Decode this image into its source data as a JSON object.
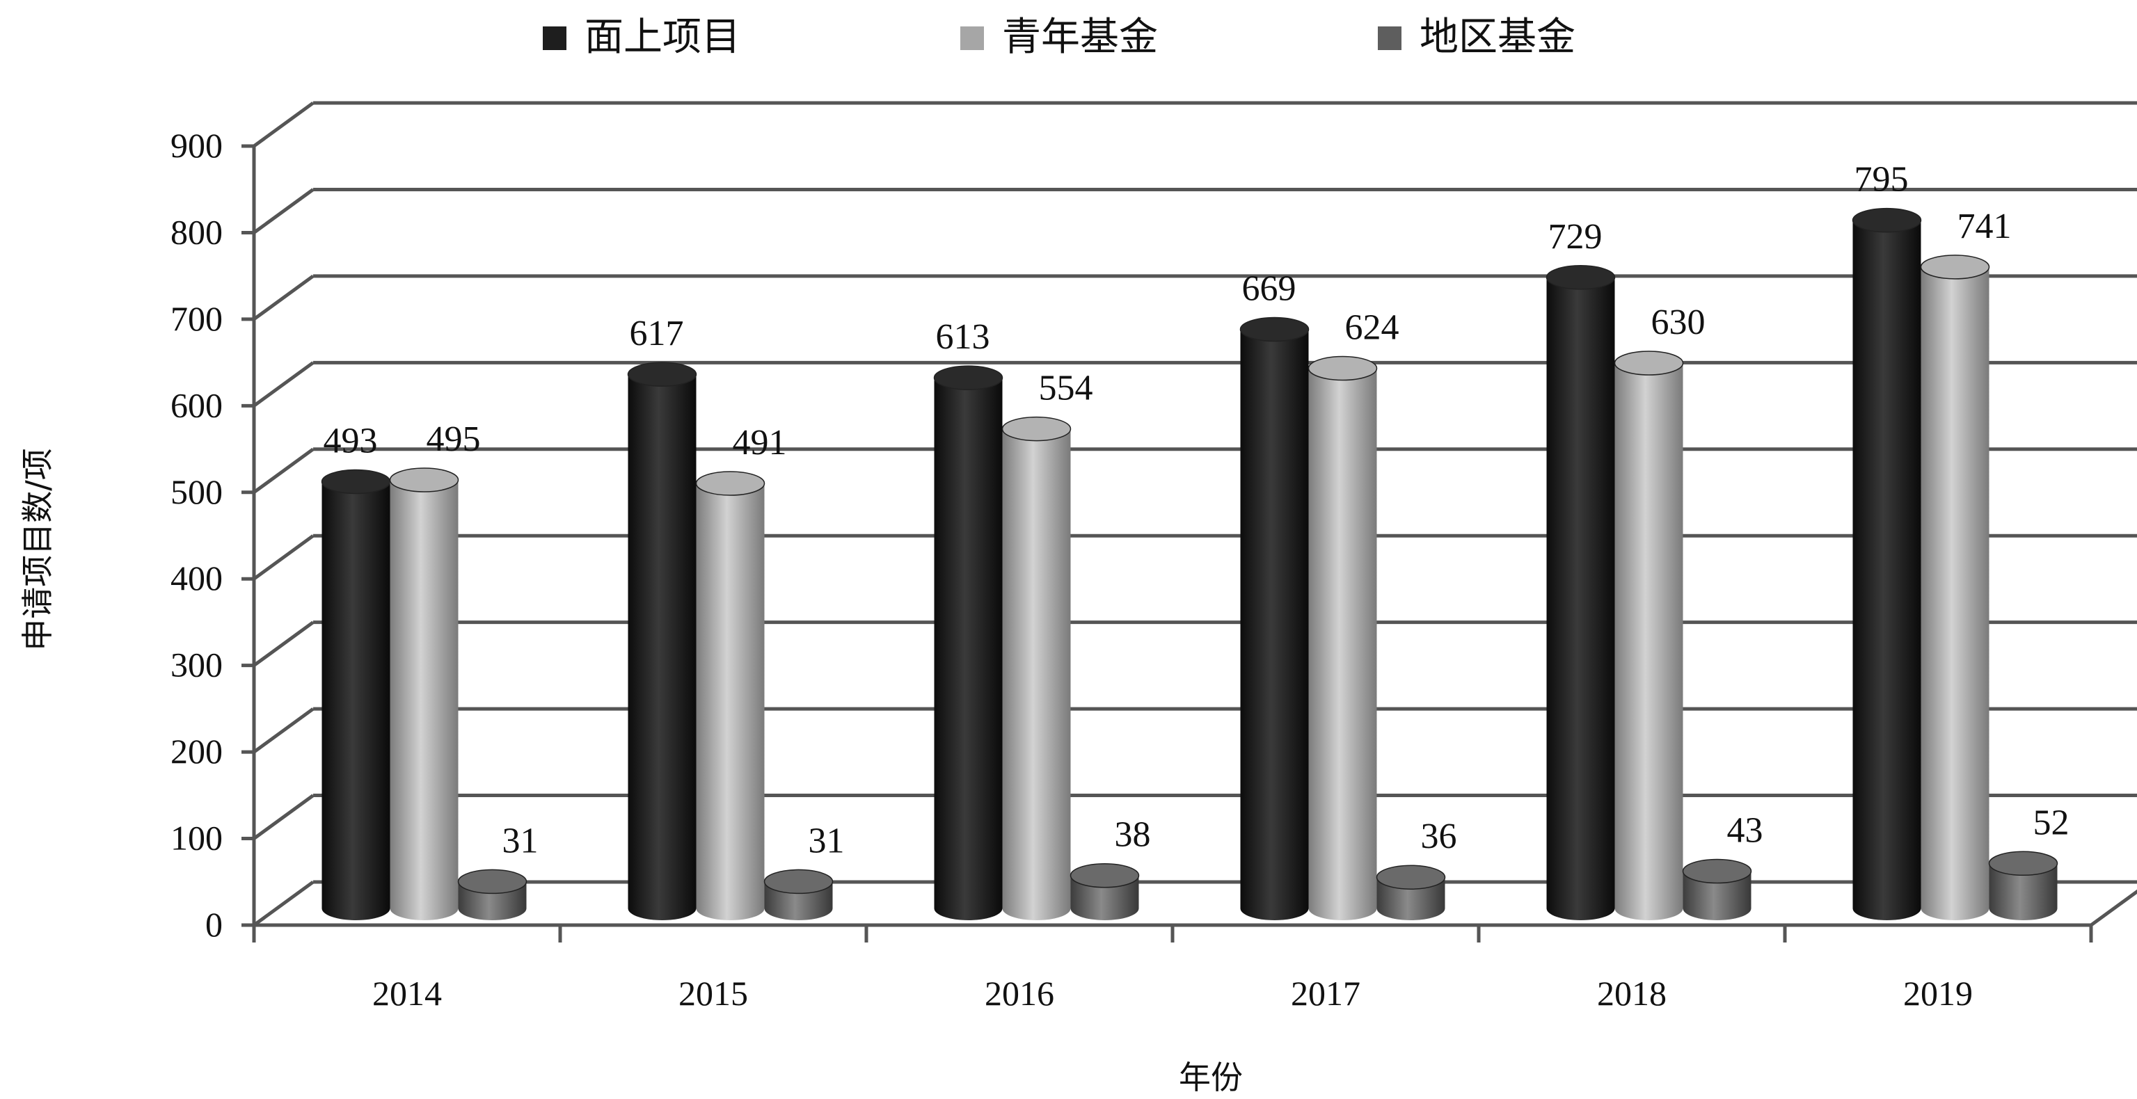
{
  "chart_data": {
    "type": "bar",
    "title": "",
    "xlabel": "年份",
    "ylabel": "申请项目数/项",
    "ylim": [
      0,
      900
    ],
    "yticks": [
      "0",
      "100",
      "200",
      "300",
      "400",
      "500",
      "600",
      "700",
      "800",
      "900"
    ],
    "grid": true,
    "legend_position": "top",
    "categories": [
      "2014",
      "2015",
      "2016",
      "2017",
      "2018",
      "2019"
    ],
    "series": [
      {
        "name": "面上项目",
        "color": "#1e1e1e",
        "values": [
          493,
          617,
          613,
          669,
          729,
          795
        ]
      },
      {
        "name": "青年基金",
        "color": "#a6a6a6",
        "values": [
          495,
          491,
          554,
          624,
          630,
          741
        ]
      },
      {
        "name": "地区基金",
        "color": "#5e5e5e",
        "values": [
          31,
          31,
          38,
          36,
          43,
          52
        ]
      }
    ]
  }
}
